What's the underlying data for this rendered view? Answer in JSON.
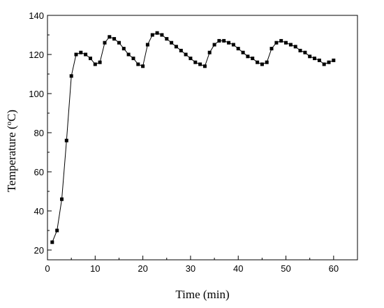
{
  "chart_data": {
    "type": "line",
    "xlabel": "Time (min)",
    "ylabel_main": "Temperature (",
    "ylabel_sup": "o",
    "ylabel_tail": "C)",
    "xlim": [
      0,
      65
    ],
    "ylim": [
      15,
      140
    ],
    "xticks": [
      0,
      10,
      20,
      30,
      40,
      50,
      60
    ],
    "yticks": [
      20,
      40,
      60,
      80,
      100,
      120,
      140
    ],
    "grid": false,
    "marker": "square",
    "line_color": "#000000",
    "series": [
      {
        "x": [
          1,
          2,
          3,
          4,
          5,
          6,
          7,
          8,
          9,
          10,
          11,
          12,
          13,
          14,
          15,
          16,
          17,
          18,
          19,
          20,
          21,
          22,
          23,
          24,
          25,
          26,
          27,
          28,
          29,
          30,
          31,
          32,
          33,
          34,
          35,
          36,
          37,
          38,
          39,
          40,
          41,
          42,
          43,
          44,
          45,
          46,
          47,
          48,
          49,
          50,
          51,
          52,
          53,
          54,
          55,
          56,
          57,
          58,
          59,
          60
        ],
        "values": [
          24,
          30,
          46,
          76,
          109,
          120,
          121,
          120,
          118,
          115,
          116,
          126,
          129,
          128,
          126,
          123,
          120,
          118,
          115,
          114,
          125,
          130,
          131,
          130,
          128,
          126,
          124,
          122,
          120,
          118,
          116,
          115,
          114,
          121,
          125,
          127,
          127,
          126,
          125,
          123,
          121,
          119,
          118,
          116,
          115,
          116,
          123,
          126,
          127,
          126,
          125,
          124,
          122,
          121,
          119,
          118,
          117,
          115,
          116,
          117
        ]
      }
    ]
  }
}
